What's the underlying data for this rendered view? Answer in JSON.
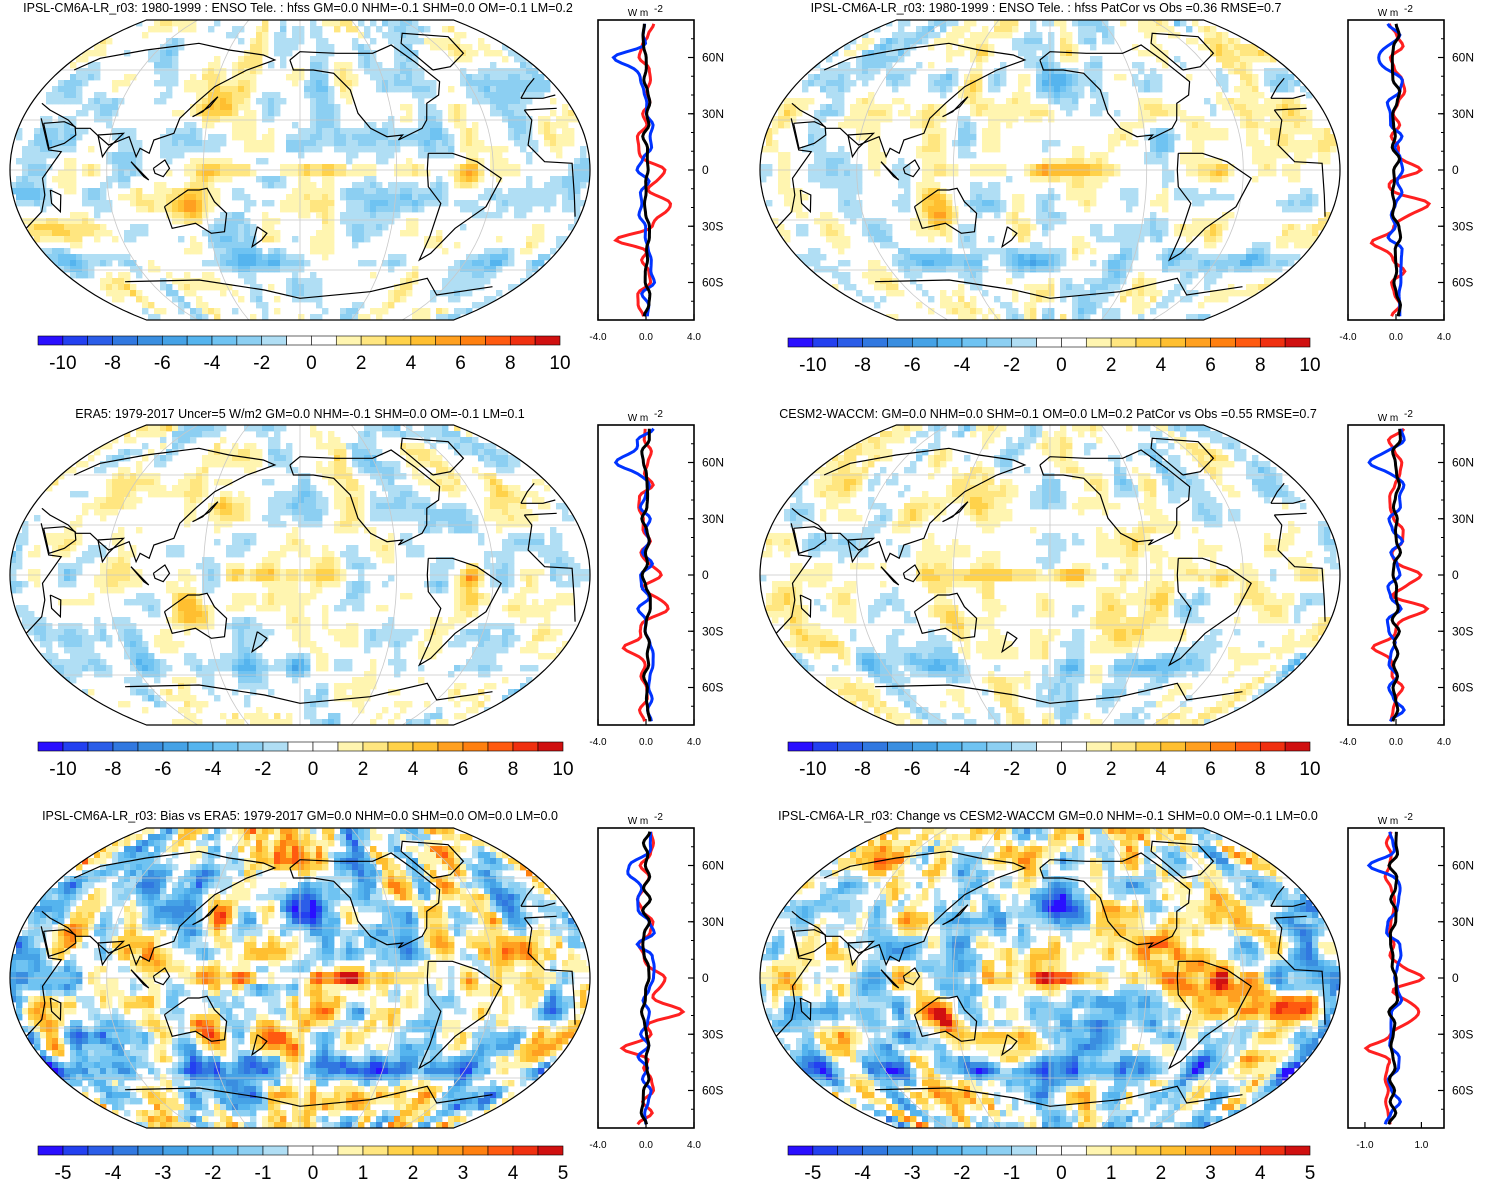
{
  "figure": {
    "units_label": "W m",
    "units_superscript": "-2",
    "lat_labels": [
      "60N",
      "30N",
      "0",
      "30S",
      "60S"
    ],
    "colors": {
      "ocean_bg": "#ffffff",
      "grid": "#c8c8c8",
      "coast": "#000000",
      "obs_line": "#0033ff",
      "model_line": "#ff2020",
      "diff_line": "#000000"
    }
  },
  "chart_data": [
    {
      "type": "heatmap",
      "id": "p1",
      "title": "IPSL-CM6A-LR_r03: 1980-1999 : ENSO Tele. : hfss GM=0.0 NHM=-0.1 SHM=0.0 OM=-0.1 LM=0.2",
      "colorbar": {
        "ticks": [
          "-10",
          "-8",
          "-6",
          "-4",
          "-2",
          "0",
          "2",
          "4",
          "6",
          "8",
          "10"
        ],
        "range": [
          -11,
          11
        ]
      },
      "zonal_mean": {
        "xticks": [
          "-4.0",
          "0.0",
          "4.0"
        ],
        "xlim": [
          -4,
          4
        ],
        "ylim": [
          -80,
          80
        ]
      }
    },
    {
      "type": "heatmap",
      "id": "p2",
      "title": "IPSL-CM6A-LR_r03: 1980-1999 : ENSO Tele. : hfss PatCor vs Obs =0.36 RMSE=0.7",
      "colorbar": {
        "ticks": [
          "-10",
          "-8",
          "-6",
          "-4",
          "-2",
          "0",
          "2",
          "4",
          "6",
          "8",
          "10"
        ],
        "range": [
          -11,
          11
        ]
      },
      "zonal_mean": {
        "xticks": [
          "-4.0",
          "0.0",
          "4.0"
        ],
        "xlim": [
          -4,
          4
        ],
        "ylim": [
          -80,
          80
        ]
      }
    },
    {
      "type": "heatmap",
      "id": "p3",
      "title": "ERA5: 1979-2017 Uncer=5 W/m2 GM=0.0 NHM=-0.1 SHM=0.0 OM=-0.1 LM=0.1",
      "colorbar": {
        "ticks": [
          "-10",
          "-8",
          "-6",
          "-4",
          "-2",
          "0",
          "2",
          "4",
          "6",
          "8",
          "10"
        ],
        "range": [
          -11,
          11
        ]
      },
      "zonal_mean": {
        "xticks": [
          "-4.0",
          "0.0",
          "4.0"
        ],
        "xlim": [
          -4,
          4
        ],
        "ylim": [
          -80,
          80
        ]
      }
    },
    {
      "type": "heatmap",
      "id": "p4",
      "title": "CESM2-WACCM: GM=0.0 NHM=0.0 SHM=0.1 OM=0.0 LM=0.2 PatCor vs Obs =0.55 RMSE=0.7",
      "colorbar": {
        "ticks": [
          "-10",
          "-8",
          "-6",
          "-4",
          "-2",
          "0",
          "2",
          "4",
          "6",
          "8",
          "10"
        ],
        "range": [
          -11,
          11
        ]
      },
      "zonal_mean": {
        "xticks": [
          "-4.0",
          "0.0",
          "4.0"
        ],
        "xlim": [
          -4,
          4
        ],
        "ylim": [
          -80,
          80
        ]
      }
    },
    {
      "type": "heatmap",
      "id": "p5",
      "title": "IPSL-CM6A-LR_r03: Bias vs ERA5: 1979-2017 GM=0.0 NHM=0.0 SHM=0.0 OM=0.0 LM=0.0",
      "colorbar": {
        "ticks": [
          "-5",
          "-4",
          "-3",
          "-2",
          "-1",
          "0",
          "1",
          "2",
          "3",
          "4",
          "5"
        ],
        "range": [
          -5.5,
          5.5
        ]
      },
      "zonal_mean": {
        "xticks": [
          "-4.0",
          "0.0",
          "4.0"
        ],
        "xlim": [
          -4,
          4
        ],
        "ylim": [
          -80,
          80
        ]
      }
    },
    {
      "type": "heatmap",
      "id": "p6",
      "title": "IPSL-CM6A-LR_r03: Change vs CESM2-WACCM GM=0.0 NHM=-0.1 SHM=0.0 OM=-0.1 LM=0.0",
      "colorbar": {
        "ticks": [
          "-5",
          "-4",
          "-3",
          "-2",
          "-1",
          "0",
          "1",
          "2",
          "3",
          "4",
          "5"
        ],
        "range": [
          -5.5,
          5.5
        ]
      },
      "zonal_mean": {
        "xticks": [
          "-1.0",
          "1.0"
        ],
        "xlim": [
          -1.6,
          1.8
        ],
        "ylim": [
          -80,
          80
        ]
      }
    }
  ]
}
